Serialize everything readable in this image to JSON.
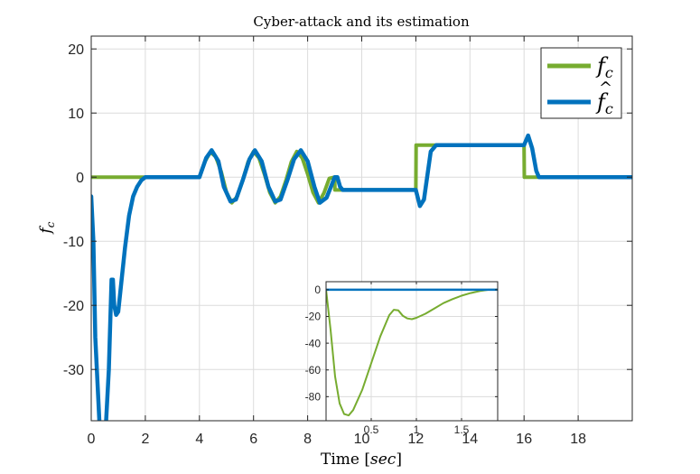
{
  "chart_data": [
    {
      "type": "line",
      "title": "Cyber-attack and its estimation",
      "xlabel": "Time [sec]",
      "ylabel": "f_c",
      "xlim": [
        0,
        20
      ],
      "ylim": [
        -38,
        22
      ],
      "xticks": [
        0,
        2,
        4,
        6,
        8,
        10,
        12,
        14,
        16,
        18
      ],
      "yticks": [
        20,
        10,
        0,
        -10,
        -20,
        -30
      ],
      "grid": true,
      "legend_position": "top-right",
      "colors": {
        "fc": "#77AC30",
        "fc_hat": "#0072BD"
      },
      "series": [
        {
          "name": "f_c",
          "legend_label": "f_c",
          "x": [
            0,
            4.0,
            4.2,
            4.4,
            4.6,
            4.8,
            5.0,
            5.2,
            5.4,
            5.6,
            5.8,
            6.0,
            6.2,
            6.4,
            6.6,
            6.8,
            7.0,
            7.2,
            7.4,
            7.6,
            7.8,
            8.0,
            8.2,
            8.4,
            8.6,
            8.8,
            9.0,
            9.01,
            12.0,
            12.01,
            16.0,
            16.01,
            20
          ],
          "values": [
            0,
            0,
            2.4,
            3.9,
            3.2,
            0.9,
            -2.4,
            -4.0,
            -3.0,
            -0.5,
            2.4,
            4.0,
            3.0,
            0.5,
            -2.4,
            -4.0,
            -3.0,
            -0.5,
            2.4,
            4.0,
            3.0,
            0.5,
            -2.4,
            -4.0,
            -2.5,
            -0.2,
            0,
            -2,
            -2,
            5,
            5,
            0,
            0
          ]
        },
        {
          "name": "f_c hat",
          "legend_label": "f̂_c",
          "x": [
            0,
            0.08,
            0.15,
            0.3,
            0.45,
            0.55,
            0.65,
            0.75,
            0.8,
            0.85,
            0.92,
            1.0,
            1.1,
            1.25,
            1.4,
            1.55,
            1.7,
            1.85,
            2.0,
            4.0,
            4.25,
            4.45,
            4.7,
            4.9,
            5.15,
            5.35,
            5.6,
            5.85,
            6.05,
            6.3,
            6.55,
            6.8,
            7.0,
            7.25,
            7.5,
            7.75,
            8.0,
            8.25,
            8.45,
            8.7,
            9.0,
            9.1,
            9.2,
            9.3,
            12.0,
            12.15,
            12.3,
            12.55,
            12.75,
            16.0,
            16.15,
            16.3,
            16.45,
            16.55,
            20
          ],
          "values": [
            -3,
            -10,
            -25,
            -38,
            -40,
            -38,
            -30,
            -16,
            -16,
            -20,
            -21.5,
            -21,
            -17,
            -11,
            -6,
            -3,
            -1.5,
            -0.5,
            0,
            0,
            3,
            4.2,
            2.5,
            -1.5,
            -3.8,
            -3.5,
            -0.5,
            2.8,
            4.2,
            2.5,
            -1.5,
            -3.8,
            -3.5,
            -0.5,
            2.8,
            4.2,
            2.5,
            -1.5,
            -4.0,
            -3.2,
            0,
            0,
            -1.5,
            -2,
            -2,
            -4.5,
            -3.5,
            4,
            5,
            5,
            6.5,
            4.5,
            1,
            0,
            0
          ]
        }
      ]
    },
    {
      "type": "line",
      "inset": true,
      "xlim": [
        0,
        1.9
      ],
      "ylim": [
        -98,
        6
      ],
      "xticks": [
        0.5,
        1,
        1.5
      ],
      "xtick_labels": [
        "0.5",
        "1",
        "1.5"
      ],
      "yticks": [
        0,
        -20,
        -40,
        -60,
        -80
      ],
      "grid": true,
      "series": [
        {
          "name": "f_c",
          "x": [
            0,
            0.05,
            0.1,
            0.15,
            0.2,
            0.25,
            0.3,
            0.4,
            0.5,
            0.6,
            0.7,
            0.75,
            0.8,
            0.85,
            0.9,
            0.95,
            1.0,
            1.1,
            1.2,
            1.3,
            1.4,
            1.5,
            1.6,
            1.7,
            1.8,
            1.9
          ],
          "values": [
            0,
            -30,
            -65,
            -85,
            -93,
            -94,
            -90,
            -75,
            -55,
            -35,
            -19,
            -15,
            -15.5,
            -19.5,
            -21.5,
            -22,
            -21,
            -18,
            -14,
            -10,
            -7,
            -4.5,
            -2.5,
            -1,
            0,
            0
          ]
        },
        {
          "name": "f_c hat",
          "x": [
            0,
            1.9
          ],
          "values": [
            0,
            0
          ]
        }
      ]
    }
  ]
}
